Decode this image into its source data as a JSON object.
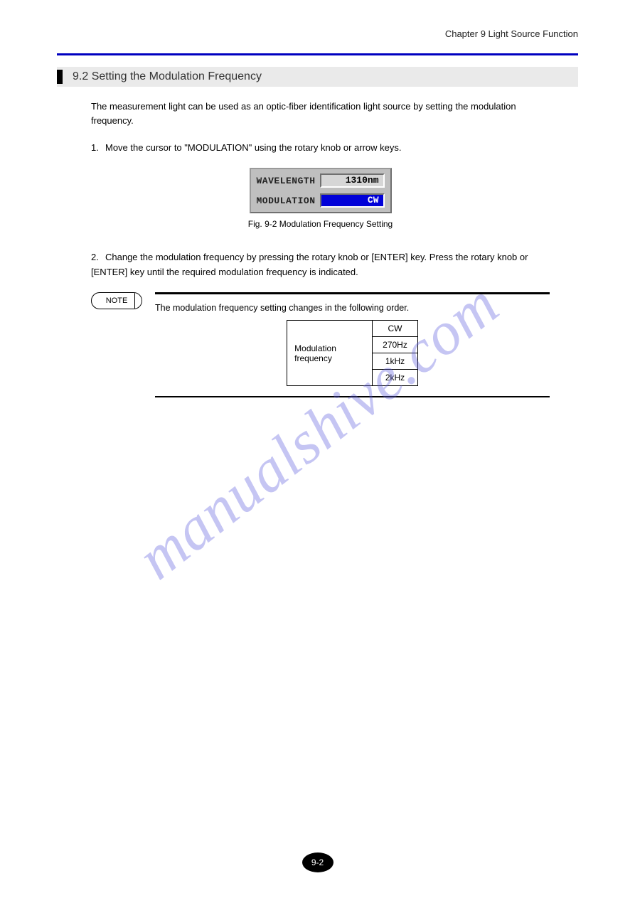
{
  "header": {
    "breadcrumb": "Chapter 9 Light Source Function"
  },
  "section": {
    "title": "9.2 Setting the Modulation Frequency"
  },
  "body": {
    "p1": "The measurement light can be used as an optic-fiber identification light source by setting the modulation frequency.",
    "p2_num": "1.",
    "p2": "Move the cursor to \"MODULATION\" using the rotary knob or arrow keys.",
    "p3_num": "2.",
    "p3": "Change the modulation frequency by pressing the rotary knob or [ENTER] key. Press the rotary knob or [ENTER] key until the required modulation frequency is indicated.",
    "fig": {
      "row1_label": "WAVELENGTH",
      "row1_value": "1310nm",
      "row2_label": "MODULATION",
      "row2_value": "CW",
      "caption": "Fig. 9-2 Modulation Frequency Setting"
    }
  },
  "note": {
    "label": "NOTE",
    "text": "The modulation frequency setting changes in the following order.",
    "table": {
      "header": "Modulation frequency",
      "rows": [
        "CW",
        "270Hz",
        "1kHz",
        "2kHz"
      ]
    }
  },
  "watermark": "manualshive.com",
  "page_number": "9-2"
}
